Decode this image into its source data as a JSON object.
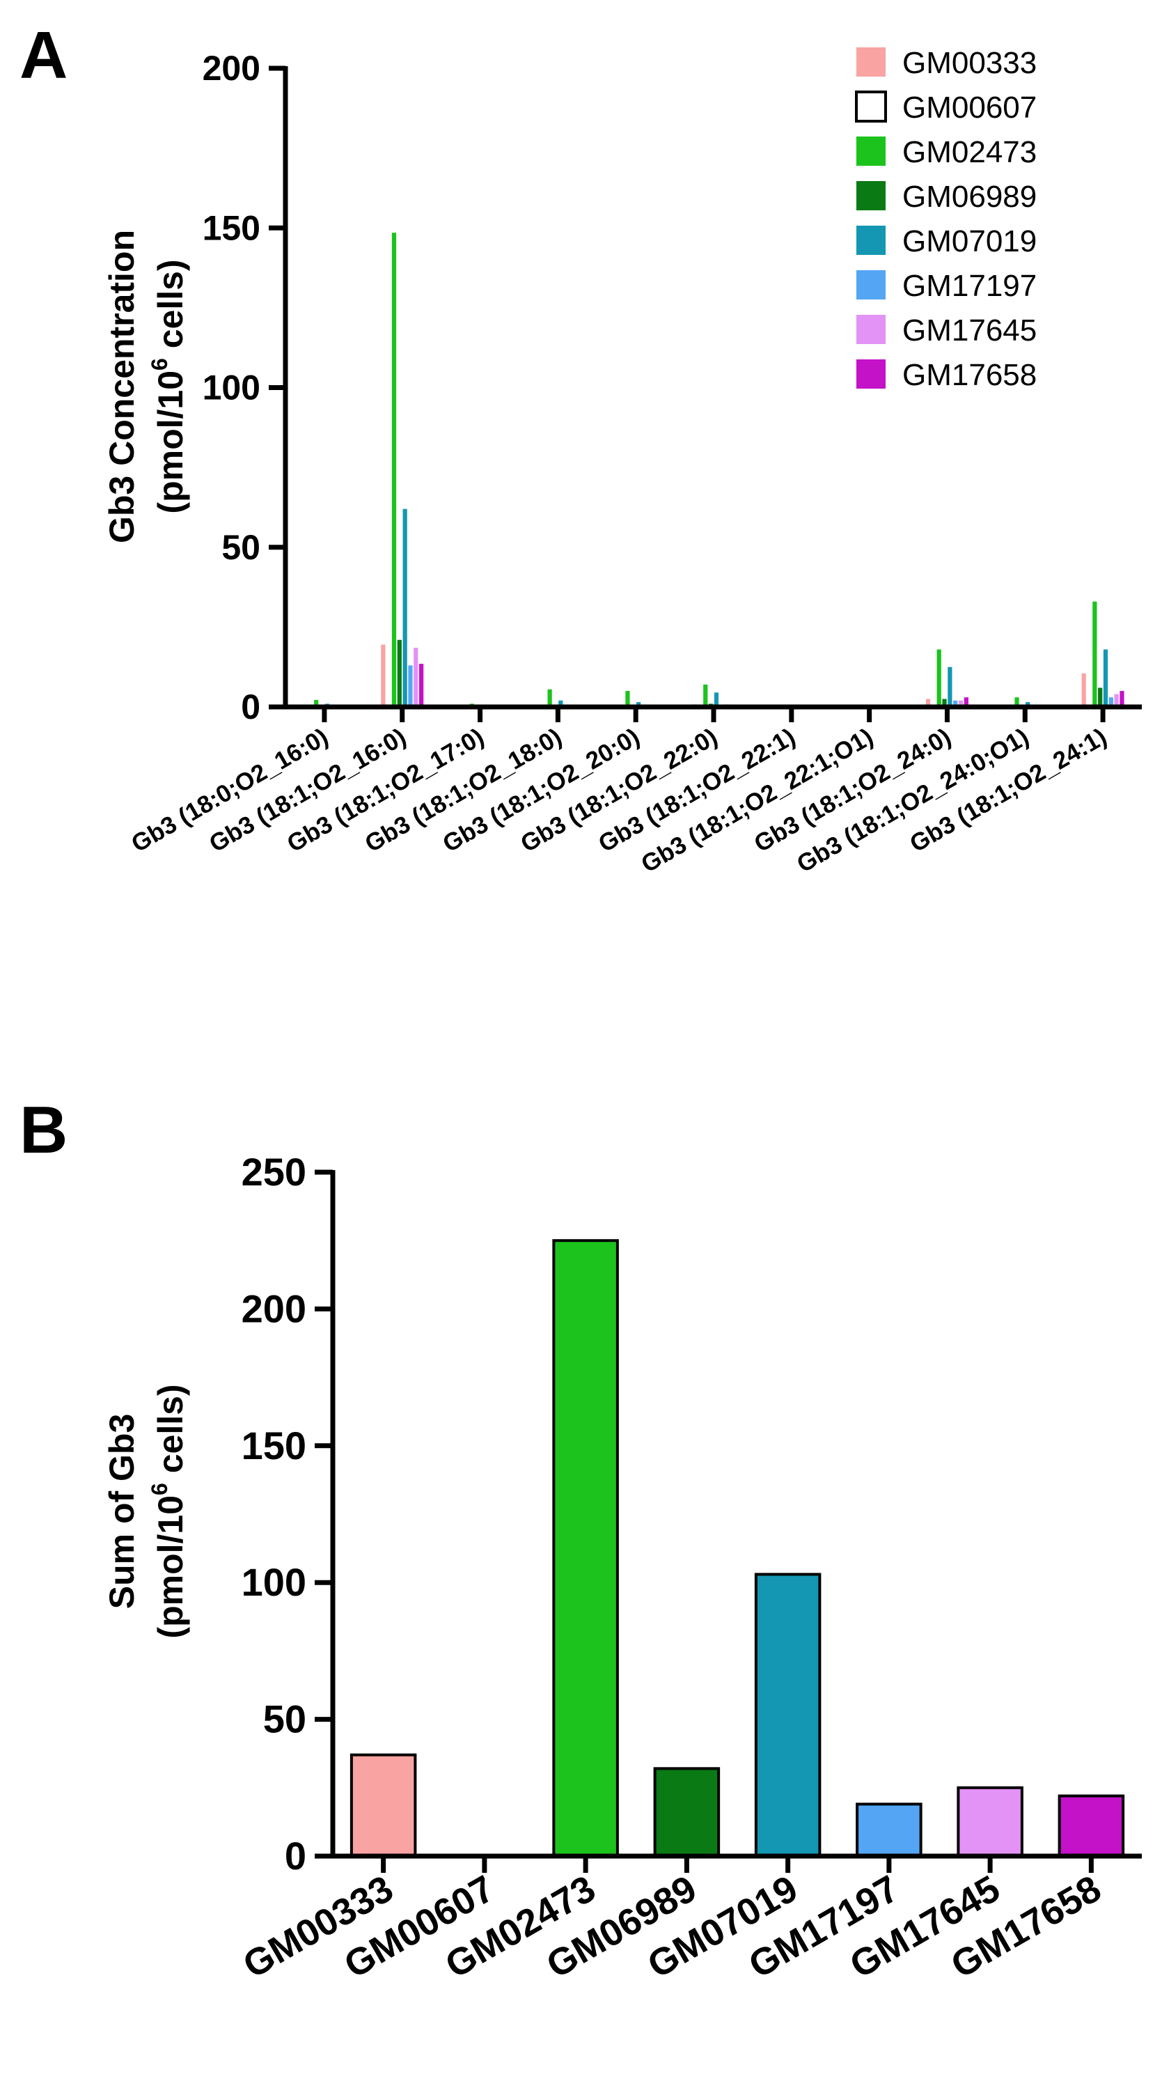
{
  "chart_data": [
    {
      "type": "bar",
      "panel_label": "A",
      "ylabel_line1": "Gb3 Concentration",
      "ylabel_line2_prefix": "(pmol/10",
      "ylabel_line2_sup": "6",
      "ylabel_line2_suffix": " cells)",
      "xlabel": "",
      "ylim": [
        0,
        200
      ],
      "yticks": [
        0,
        50,
        100,
        150,
        200
      ],
      "grid": false,
      "legend_position": "top-right",
      "categories": [
        "Gb3 (18:0;O2_16:0)",
        "Gb3 (18:1;O2_16:0)",
        "Gb3 (18:1;O2_17:0)",
        "Gb3 (18:1;O2_18:0)",
        "Gb3 (18:1;O2_20:0)",
        "Gb3 (18:1;O2_22:0)",
        "Gb3 (18:1;O2_22:1)",
        "Gb3 (18:1;O2_22:1;O1)",
        "Gb3 (18:1;O2_24:0)",
        "Gb3 (18:1;O2_24:0;O1)",
        "Gb3 (18:1;O2_24:1)"
      ],
      "series": [
        {
          "name": "GM00333",
          "color": "#F9A3A3",
          "values": [
            0.3,
            19.5,
            0.3,
            0.5,
            0.4,
            0.8,
            0.1,
            0.1,
            2.5,
            0.4,
            10.5
          ]
        },
        {
          "name": "GM00607",
          "color": "#FFFFFF",
          "values": [
            0,
            0,
            0,
            0,
            0,
            0,
            0,
            0,
            0,
            0,
            0
          ]
        },
        {
          "name": "GM02473",
          "color": "#1CC31C",
          "values": [
            2.2,
            148.5,
            1.0,
            5.5,
            5.0,
            7.0,
            0.3,
            0.2,
            18.0,
            3.0,
            33.0
          ]
        },
        {
          "name": "GM06989",
          "color": "#0A7A14",
          "values": [
            0.4,
            21.0,
            0.2,
            0.6,
            0.5,
            1.0,
            0.1,
            0.1,
            2.5,
            0.5,
            6.0
          ]
        },
        {
          "name": "GM07019",
          "color": "#1497B2",
          "values": [
            1.0,
            62.0,
            0.4,
            2.0,
            1.5,
            4.5,
            0.2,
            0.1,
            12.5,
            1.5,
            18.0
          ]
        },
        {
          "name": "GM17197",
          "color": "#54A6F5",
          "values": [
            0.2,
            13.0,
            0.1,
            0.3,
            0.3,
            0.6,
            0.1,
            0.1,
            2.0,
            0.3,
            3.0
          ]
        },
        {
          "name": "GM17645",
          "color": "#E392F5",
          "values": [
            0.3,
            18.5,
            0.1,
            0.4,
            0.3,
            0.8,
            0.1,
            0.1,
            2.0,
            0.3,
            4.0
          ]
        },
        {
          "name": "GM17658",
          "color": "#C312C8",
          "values": [
            0.3,
            13.5,
            0.1,
            0.3,
            0.3,
            0.7,
            0.1,
            0.1,
            3.0,
            0.3,
            5.0
          ]
        }
      ]
    },
    {
      "type": "bar",
      "panel_label": "B",
      "ylabel_line1": "Sum of Gb3",
      "ylabel_line2_prefix": "(pmol/10",
      "ylabel_line2_sup": "6",
      "ylabel_line2_suffix": " cells)",
      "xlabel": "",
      "ylim": [
        0,
        250
      ],
      "yticks": [
        0,
        50,
        100,
        150,
        200,
        250
      ],
      "grid": false,
      "categories": [
        "GM00333",
        "GM00607",
        "GM02473",
        "GM06989",
        "GM07019",
        "GM17197",
        "GM17645",
        "GM17658"
      ],
      "values": [
        37,
        0,
        225,
        32,
        103,
        19,
        25,
        22
      ],
      "colors": [
        "#F9A3A3",
        "#FFFFFF",
        "#1CC31C",
        "#0A7A14",
        "#1497B2",
        "#54A6F5",
        "#E392F5",
        "#C312C8"
      ]
    }
  ]
}
